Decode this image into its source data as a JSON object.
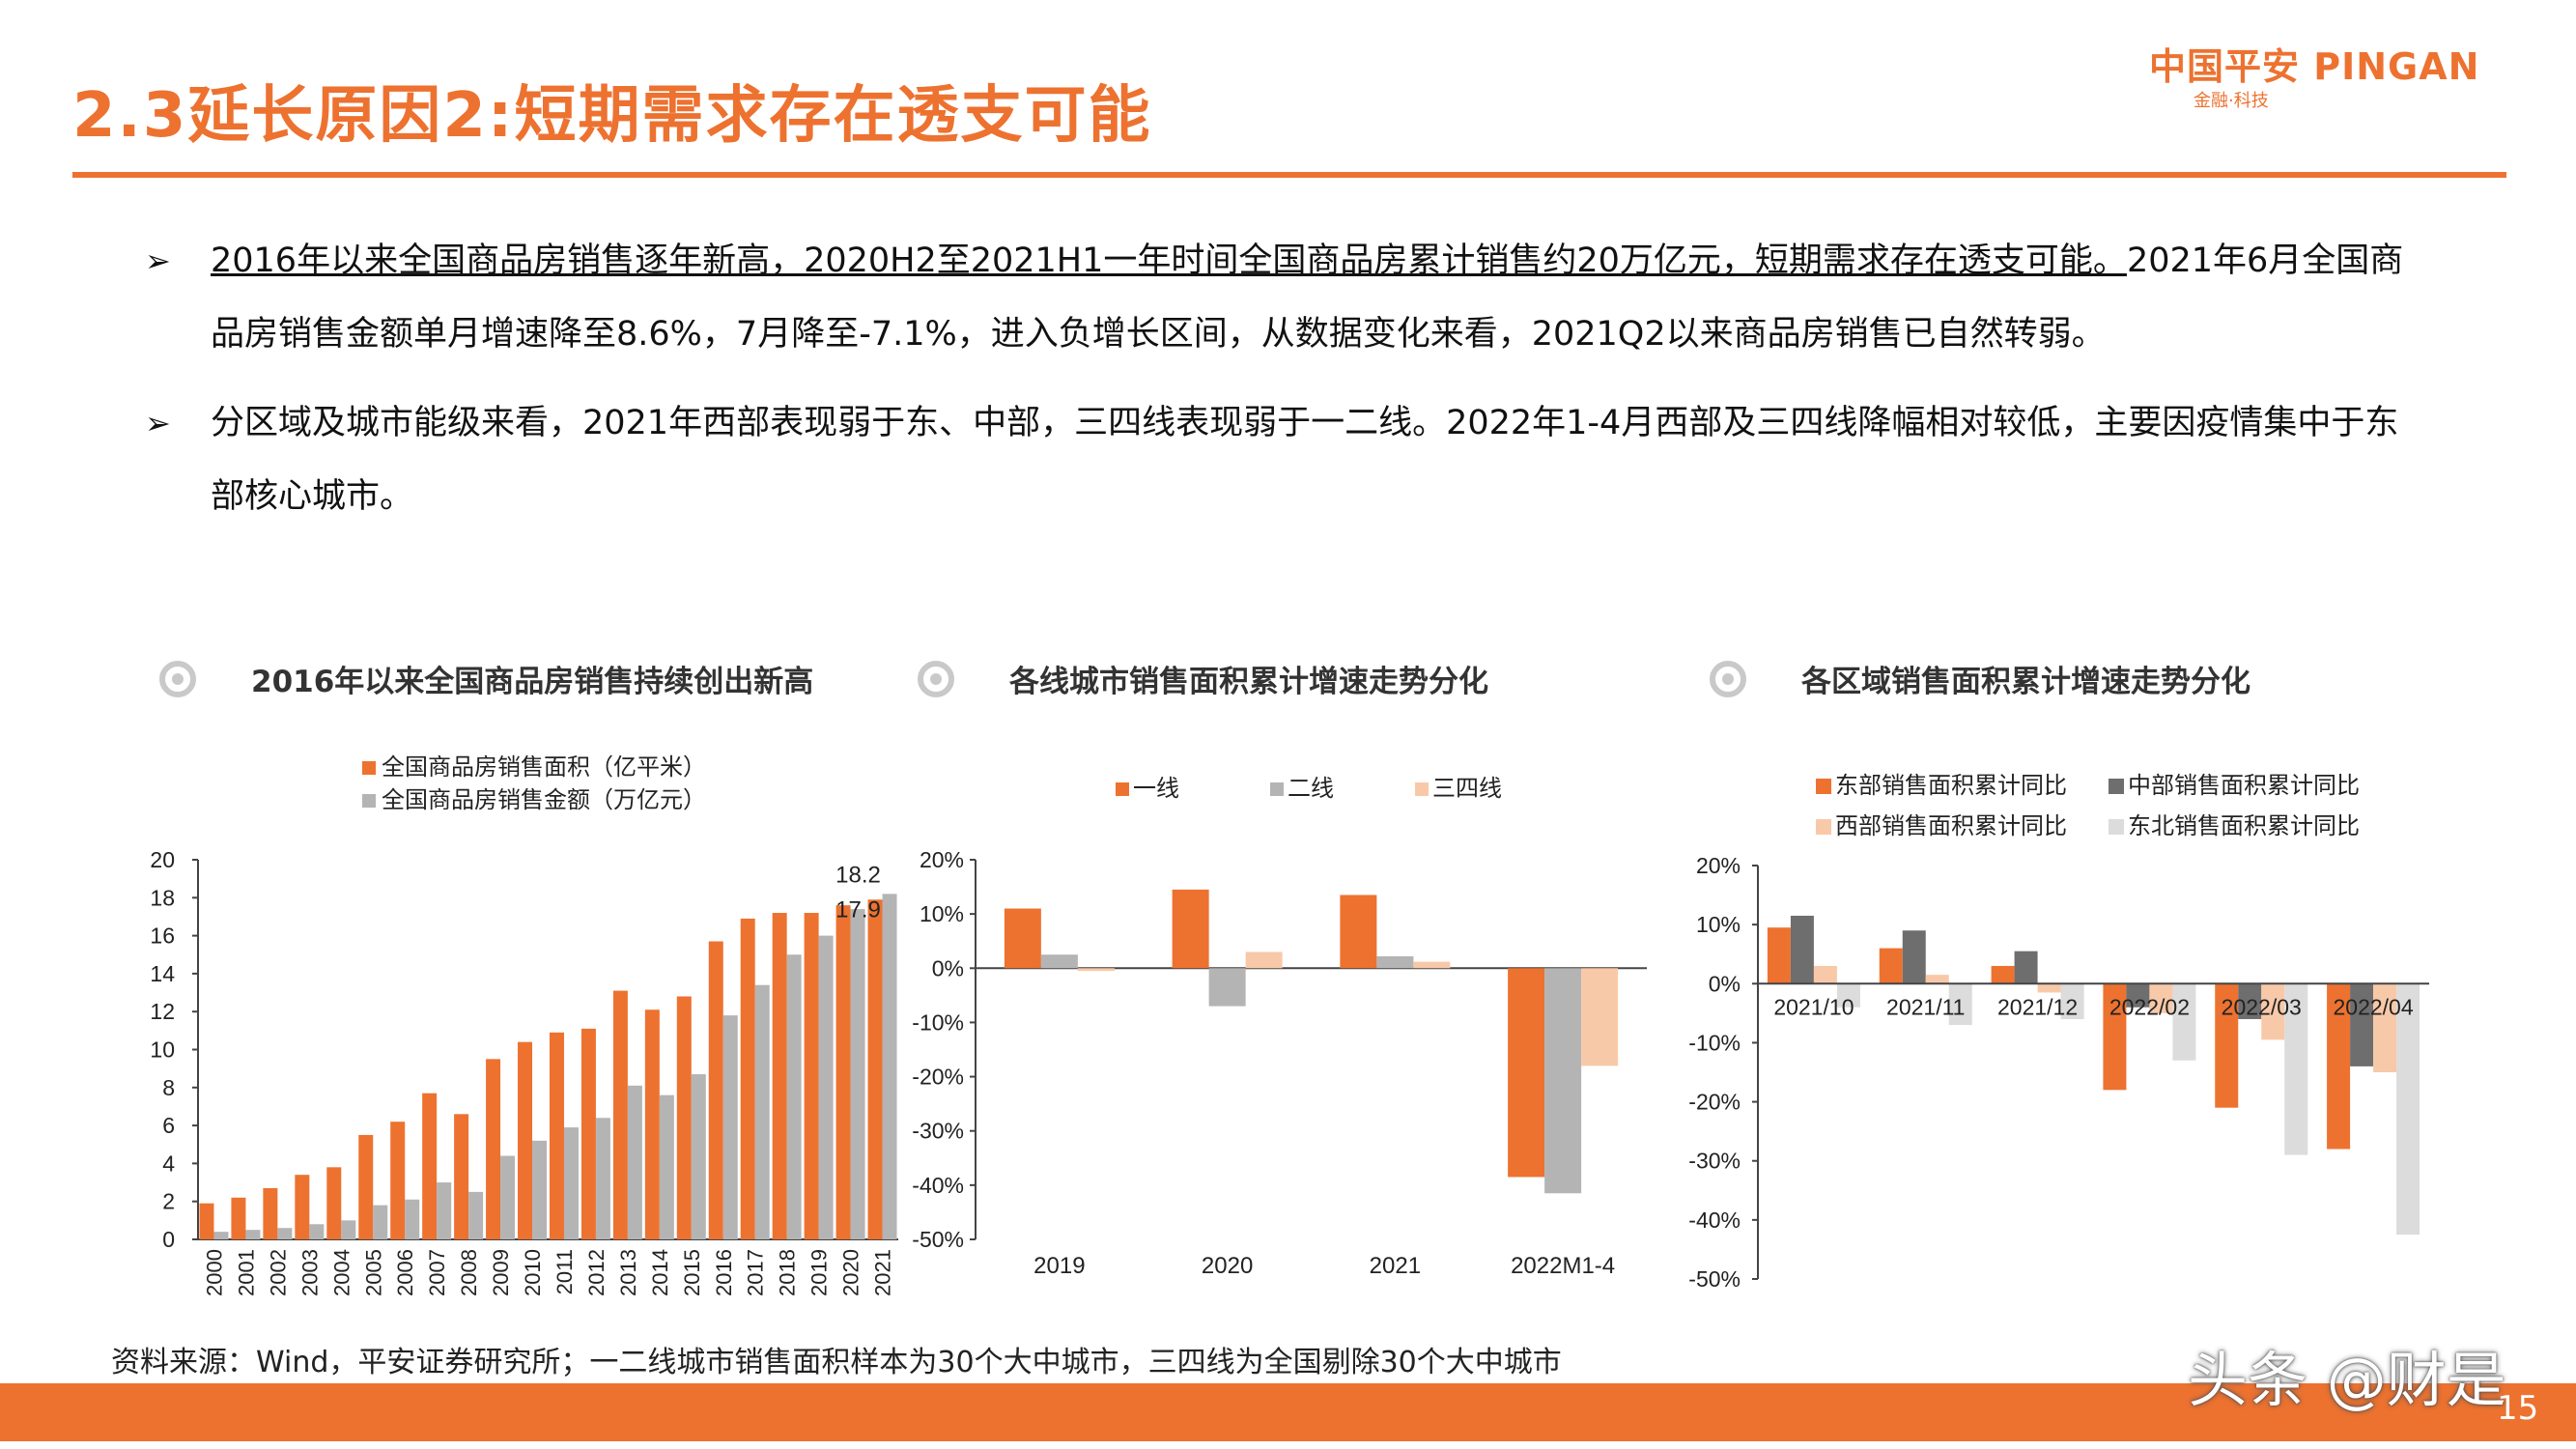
{
  "header": {
    "title": "2.3延长原因2:短期需求存在透支可能",
    "logo_main": "中国平安 PINGAN",
    "logo_sub": "金融·科技"
  },
  "bullets": [
    {
      "mark": "➢",
      "underlined": "2016年以来全国商品房销售逐年新高，2020H2至2021H1一年时间全国商品房累计销售约20万亿元，短期需求存在透支可能。",
      "rest": "2021年6月全国商品房销售金额单月增速降至8.6%，7月降至-7.1%，进入负增长区间，从数据变化来看，2021Q2以来商品房销售已自然转弱。"
    },
    {
      "mark": "➢",
      "underlined": "",
      "rest": "分区域及城市能级来看，2021年西部表现弱于东、中部，三四线表现弱于一二线。2022年1-4月西部及三四线降幅相对较低，主要因疫情集中于东部核心城市。"
    }
  ],
  "chart_titles": [
    "2016年以来全国商品房销售持续创出新高",
    "各线城市销售面积累计增速走势分化",
    "各区域销售面积累计增速走势分化"
  ],
  "colors": {
    "accent": "#ED7230",
    "gray": "#B4B4B4",
    "light_orange": "#F8C9A8",
    "dark_gray": "#6E6E6E",
    "light_gray": "#DCDCDC"
  },
  "chart_data": [
    {
      "type": "bar",
      "categories": [
        "2000",
        "2001",
        "2002",
        "2003",
        "2004",
        "2005",
        "2006",
        "2007",
        "2008",
        "2009",
        "2010",
        "2011",
        "2012",
        "2013",
        "2014",
        "2015",
        "2016",
        "2017",
        "2018",
        "2019",
        "2020",
        "2021"
      ],
      "series": [
        {
          "name": "全国商品房销售面积（亿平米）",
          "values": [
            1.9,
            2.2,
            2.7,
            3.4,
            3.8,
            5.5,
            6.2,
            7.7,
            6.6,
            9.5,
            10.4,
            10.9,
            11.1,
            13.1,
            12.1,
            12.8,
            15.7,
            16.9,
            17.2,
            17.2,
            17.6,
            17.9
          ]
        },
        {
          "name": "全国商品房销售金额（万亿元）",
          "values": [
            0.4,
            0.5,
            0.6,
            0.8,
            1.0,
            1.8,
            2.1,
            3.0,
            2.5,
            4.4,
            5.2,
            5.9,
            6.4,
            8.1,
            7.6,
            8.7,
            11.8,
            13.4,
            15.0,
            16.0,
            17.4,
            18.2
          ]
        }
      ],
      "data_labels": [
        "18.2",
        "17.9"
      ],
      "ylim": [
        0,
        20
      ],
      "yticks": [
        "0",
        "2",
        "4",
        "6",
        "8",
        "10",
        "12",
        "14",
        "16",
        "18",
        "20"
      ],
      "legend": "top"
    },
    {
      "type": "bar",
      "categories": [
        "2019",
        "2020",
        "2021",
        "2022M1-4"
      ],
      "series": [
        {
          "name": "一线",
          "values": [
            11,
            14.5,
            13.5,
            -38.5
          ]
        },
        {
          "name": "二线",
          "values": [
            2.5,
            -7,
            2.2,
            -41.5
          ]
        },
        {
          "name": "三四线",
          "values": [
            -0.5,
            3,
            1.2,
            -18
          ]
        }
      ],
      "ylim": [
        -50,
        20
      ],
      "yticks": [
        "20%",
        "10%",
        "0%",
        "-10%",
        "-20%",
        "-30%",
        "-40%",
        "-50%"
      ],
      "legend": "top"
    },
    {
      "type": "bar",
      "categories": [
        "2021/10",
        "2021/11",
        "2021/12",
        "2022/02",
        "2022/03",
        "2022/04"
      ],
      "series": [
        {
          "name": "东部销售面积累计同比",
          "values": [
            9.5,
            6,
            3,
            -18,
            -21,
            -28
          ]
        },
        {
          "name": "中部销售面积累计同比",
          "values": [
            11.5,
            9,
            5.5,
            -4,
            -6,
            -14
          ]
        },
        {
          "name": "西部销售面积累计同比",
          "values": [
            3,
            1.5,
            -1.5,
            -5,
            -9.5,
            -15
          ]
        },
        {
          "name": "东北销售面积累计同比",
          "values": [
            -4,
            -7,
            -6,
            -13,
            -29,
            -42.5
          ]
        }
      ],
      "ylim": [
        -50,
        20
      ],
      "yticks": [
        "20%",
        "10%",
        "0%",
        "-10%",
        "-20%",
        "-30%",
        "-40%",
        "-50%"
      ],
      "legend": "top"
    }
  ],
  "footnote": "资料来源：Wind，平安证券研究所；一二线城市销售面积样本为30个大中城市，三四线为全国剔除30个大中城市",
  "page_number": "15",
  "watermark": "头条 @财是"
}
